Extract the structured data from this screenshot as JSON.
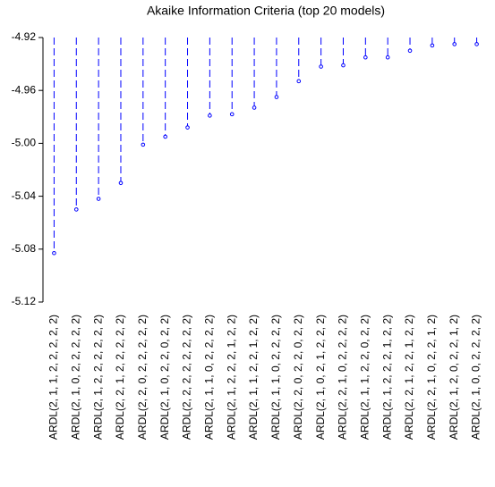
{
  "chart_data": {
    "type": "lollipop",
    "title": "Akaike Information Criteria (top 20 models)",
    "categories": [
      "ARDL(2, 1, 1, 2, 2, 2, 2, 2)",
      "ARDL(2, 1, 0, 2, 2, 2, 2, 2)",
      "ARDL(2, 1, 2, 2, 2, 2, 2, 2)",
      "ARDL(2, 2, 1, 2, 2, 2, 2, 2)",
      "ARDL(2, 2, 0, 2, 2, 2, 2, 2)",
      "ARDL(2, 1, 0, 2, 2, 0, 2, 2)",
      "ARDL(2, 2, 2, 2, 2, 2, 2, 2)",
      "ARDL(2, 1, 1, 0, 2, 2, 2, 2)",
      "ARDL(2, 1, 2, 2, 2, 1, 2, 2)",
      "ARDL(2, 1, 1, 2, 2, 1, 2, 2)",
      "ARDL(2, 1, 1, 0, 2, 2, 2, 2)",
      "ARDL(2, 2, 0, 2, 2, 0, 2, 2)",
      "ARDL(2, 1, 0, 2, 1, 2, 2, 2)",
      "ARDL(2, 2, 1, 0, 2, 2, 2, 2)",
      "ARDL(2, 1, 1, 2, 2, 0, 2, 2)",
      "ARDL(2, 1, 2, 2, 2, 1, 2, 2)",
      "ARDL(2, 2, 1, 2, 2, 1, 2, 2)",
      "ARDL(2, 2, 1, 0, 2, 2, 1, 2)",
      "ARDL(2, 1, 2, 0, 2, 2, 1, 2)",
      "ARDL(2, 1, 0, 0, 2, 2, 2, 2)"
    ],
    "values": [
      -5.083,
      -5.05,
      -5.042,
      -5.03,
      -5.001,
      -4.995,
      -4.988,
      -4.979,
      -4.978,
      -4.973,
      -4.965,
      -4.953,
      -4.942,
      -4.941,
      -4.935,
      -4.935,
      -4.93,
      -4.926,
      -4.925,
      -4.925
    ],
    "color": "#0000ff",
    "ylim": [
      -5.12,
      -4.92
    ],
    "yticks": [
      -4.92,
      -4.96,
      {
        "value": -5,
        "label": "-5.00"
      },
      -5.04,
      -5.08,
      -5.12
    ]
  }
}
